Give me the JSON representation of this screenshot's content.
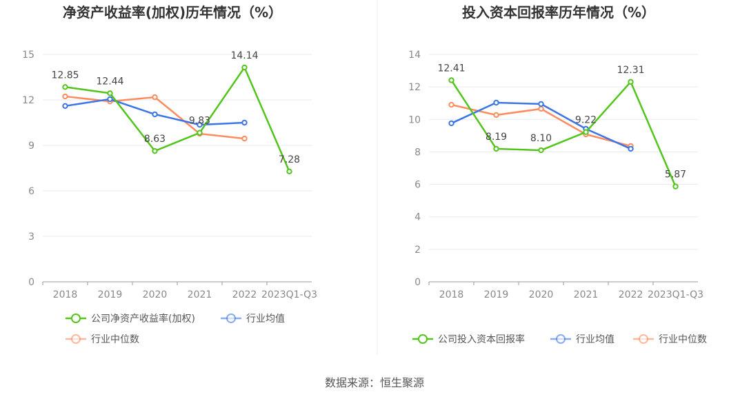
{
  "source": "数据来源：恒生聚源",
  "chart_data": [
    {
      "type": "line",
      "title": "净资产收益率(加权)历年情况（%）",
      "categories": [
        "2018",
        "2019",
        "2020",
        "2021",
        "2022",
        "2023Q1-Q3"
      ],
      "ylim": [
        0,
        15
      ],
      "yticks": [
        0,
        3,
        6,
        9,
        12,
        15
      ],
      "series": [
        {
          "name": "公司净资产收益率(加权)",
          "color": "#52c41a",
          "values": [
            12.85,
            12.44,
            8.63,
            9.83,
            14.14,
            7.28
          ],
          "labels": true
        },
        {
          "name": "行业均值",
          "color": "#3b74e6",
          "values": [
            11.6,
            12.05,
            11.05,
            10.36,
            10.5,
            null
          ]
        },
        {
          "name": "行业中位数",
          "color": "#ff8a5c",
          "values": [
            12.23,
            11.9,
            12.18,
            9.77,
            9.45,
            null
          ]
        }
      ]
    },
    {
      "type": "line",
      "title": "投入资本回报率历年情况（%）",
      "categories": [
        "2018",
        "2019",
        "2020",
        "2021",
        "2022",
        "2023Q1-Q3"
      ],
      "ylim": [
        0,
        14
      ],
      "yticks": [
        0,
        2,
        4,
        6,
        8,
        10,
        12,
        14
      ],
      "series": [
        {
          "name": "公司投入资本回报率",
          "color": "#52c41a",
          "values": [
            12.41,
            8.19,
            8.1,
            9.22,
            12.31,
            5.87
          ],
          "labels": true
        },
        {
          "name": "行业均值",
          "color": "#3b74e6",
          "values": [
            9.76,
            11.03,
            10.95,
            9.42,
            8.19,
            null
          ]
        },
        {
          "name": "行业中位数",
          "color": "#ff8a5c",
          "values": [
            10.9,
            10.27,
            10.65,
            9.08,
            8.36,
            null
          ]
        }
      ]
    }
  ]
}
